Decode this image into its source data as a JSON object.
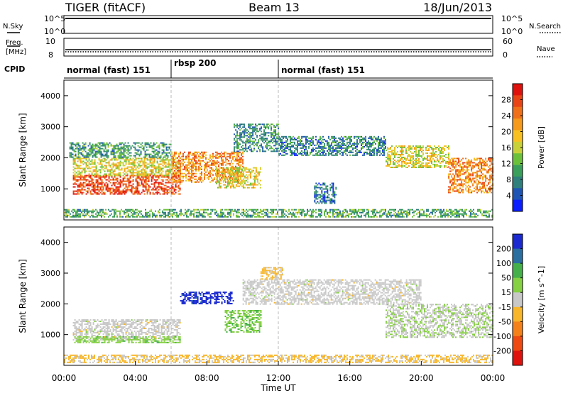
{
  "header": {
    "radar": "TIGER (fitACF)",
    "beam": "Beam 13",
    "date": "18/Jun/2013"
  },
  "strips": {
    "nsky_label": "N.Sky",
    "nsky_ticks": [
      "10^5",
      "10^0"
    ],
    "nsearch_label": "N.Search",
    "nsearch_ticks": [
      "10^5",
      "10^0"
    ],
    "freq_label_1": "Freq.",
    "freq_label_2": "[MHz]",
    "freq_ticks": [
      "10",
      "8"
    ],
    "nave_label": "Nave",
    "nave_ticks": [
      "60",
      "0"
    ],
    "cpid_label": "CPID",
    "cpid_segments": [
      {
        "label": "normal (fast) 151",
        "start_hr": 0,
        "end_hr": 6
      },
      {
        "label": "rbsp 200",
        "start_hr": 6,
        "end_hr": 12
      },
      {
        "label": "normal (fast) 151",
        "start_hr": 12,
        "end_hr": 24
      }
    ]
  },
  "chart_data": [
    {
      "type": "heatmap",
      "title": "",
      "xlabel": "Time UT",
      "ylabel": "Slant Range [km]",
      "xlim": [
        0,
        24
      ],
      "ylim": [
        0,
        4500
      ],
      "x_ticks": [
        "00:00",
        "04:00",
        "08:00",
        "12:00",
        "16:00",
        "20:00",
        "00:00"
      ],
      "y_ticks": [
        "1000",
        "2000",
        "3000",
        "4000"
      ],
      "colorbar": {
        "label": "Power [dB]",
        "ticks": [
          "28",
          "24",
          "20",
          "16",
          "12",
          "8",
          "4"
        ],
        "range": [
          0,
          30
        ],
        "colors": [
          "#0a1eff",
          "#1e55b4",
          "#2f7f7d",
          "#3a9f5a",
          "#6cc13b",
          "#c8d238",
          "#f8c020",
          "#f59a1a",
          "#ef7018",
          "#e94415",
          "#e0120e"
        ]
      },
      "regions": [
        {
          "x": [
            0.5,
            6.5
          ],
          "y": [
            850,
            1450
          ],
          "v": 26
        },
        {
          "x": [
            0.5,
            6.5
          ],
          "y": [
            1450,
            2000
          ],
          "v": 16
        },
        {
          "x": [
            0.3,
            6.0
          ],
          "y": [
            2000,
            2500
          ],
          "v": 9
        },
        {
          "x": [
            6.0,
            10.0
          ],
          "y": [
            1200,
            2200
          ],
          "v": 22
        },
        {
          "x": [
            8.5,
            11.0
          ],
          "y": [
            1050,
            1700
          ],
          "v": 16
        },
        {
          "x": [
            9.5,
            12.0
          ],
          "y": [
            2200,
            3100
          ],
          "v": 8
        },
        {
          "x": [
            12.0,
            18.0
          ],
          "y": [
            2100,
            2700
          ],
          "v": 7
        },
        {
          "x": [
            18.0,
            21.5
          ],
          "y": [
            1700,
            2400
          ],
          "v": 16
        },
        {
          "x": [
            21.5,
            24.0
          ],
          "y": [
            900,
            2000
          ],
          "v": 22
        },
        {
          "x": [
            14.0,
            15.2
          ],
          "y": [
            550,
            1200
          ],
          "v": 6
        },
        {
          "x": [
            0.0,
            24.0
          ],
          "y": [
            100,
            350
          ],
          "v": 10
        }
      ]
    },
    {
      "type": "heatmap",
      "title": "",
      "xlabel": "Time UT",
      "ylabel": "Slant Range [km]",
      "xlim": [
        0,
        24
      ],
      "ylim": [
        0,
        4500
      ],
      "x_ticks": [
        "00:00",
        "04:00",
        "08:00",
        "12:00",
        "16:00",
        "20:00",
        "00:00"
      ],
      "y_ticks": [
        "1000",
        "2000",
        "3000",
        "4000"
      ],
      "colorbar": {
        "label": "Velocity [m s^-1]",
        "ticks": [
          "200",
          "100",
          "50",
          "15",
          "-15",
          "-50",
          "-100",
          "-200"
        ],
        "range": [
          -250,
          250
        ],
        "colors": [
          "#e0120e",
          "#ef4a12",
          "#f5811a",
          "#f8b62a",
          "#c8c8c8",
          "#86d044",
          "#45b04a",
          "#2b6fa0",
          "#1a2ad0"
        ]
      },
      "regions": [
        {
          "x": [
            0.5,
            6.5
          ],
          "y": [
            850,
            1500
          ],
          "v": 0
        },
        {
          "x": [
            0.5,
            6.5
          ],
          "y": [
            750,
            950
          ],
          "v": 60
        },
        {
          "x": [
            6.5,
            9.5
          ],
          "y": [
            2000,
            2400
          ],
          "v": 220
        },
        {
          "x": [
            9.0,
            11.0
          ],
          "y": [
            1100,
            1800
          ],
          "v": 70
        },
        {
          "x": [
            10.0,
            20.0
          ],
          "y": [
            2000,
            2800
          ],
          "v": 0
        },
        {
          "x": [
            18.0,
            24.0
          ],
          "y": [
            900,
            2000
          ],
          "v": 20
        },
        {
          "x": [
            11.0,
            12.2
          ],
          "y": [
            2800,
            3200
          ],
          "v": -40
        },
        {
          "x": [
            0.0,
            24.0
          ],
          "y": [
            100,
            350
          ],
          "v": -40
        }
      ]
    }
  ]
}
